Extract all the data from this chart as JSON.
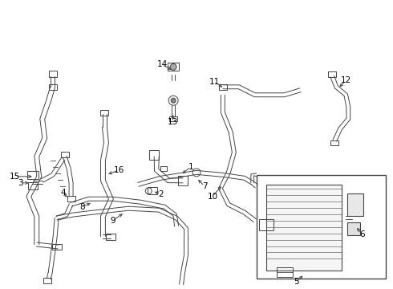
{
  "background_color": "#ffffff",
  "line_color": "#444444",
  "lw": 1.2,
  "tlw": 0.7,
  "fs": 7.5,
  "fig_width": 4.9,
  "fig_height": 3.6,
  "dpi": 100
}
